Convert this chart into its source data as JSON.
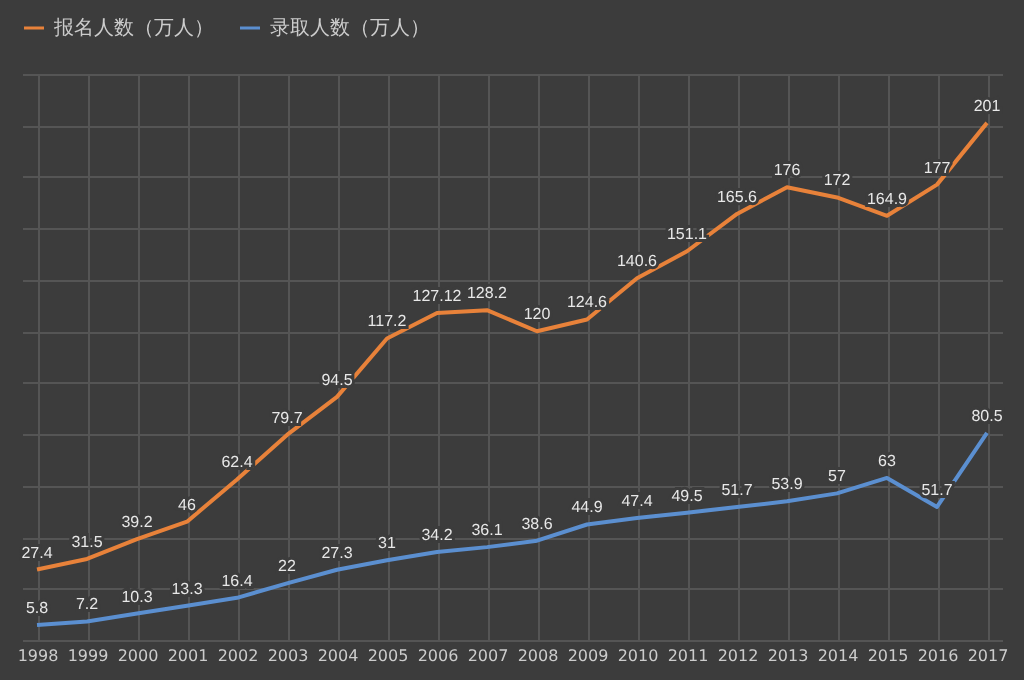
{
  "chart_data": {
    "type": "line",
    "categories": [
      "1998",
      "1999",
      "2000",
      "2001",
      "2002",
      "2003",
      "2004",
      "2005",
      "2006",
      "2007",
      "2008",
      "2009",
      "2010",
      "2011",
      "2012",
      "2013",
      "2014",
      "2015",
      "2016",
      "2017"
    ],
    "series": [
      {
        "name": "报名人数（万人）",
        "color": "#e8823a",
        "values": [
          27.4,
          31.5,
          39.2,
          46,
          62.4,
          79.7,
          94.5,
          117.2,
          127.12,
          128.2,
          120,
          124.6,
          140.6,
          151.1,
          165.6,
          176,
          172,
          164.9,
          177,
          201
        ]
      },
      {
        "name": "录取人数（万人）",
        "color": "#5b8fd0",
        "values": [
          5.8,
          7.2,
          10.3,
          13.3,
          16.4,
          22,
          27.3,
          31,
          34.2,
          36.1,
          38.6,
          44.9,
          47.4,
          49.5,
          51.7,
          53.9,
          57,
          63,
          51.7,
          80.5
        ]
      }
    ],
    "data_labels": true,
    "grid": true,
    "legend": "top",
    "tick_labels": "x",
    "marker": "none",
    "line_style": "solid"
  }
}
